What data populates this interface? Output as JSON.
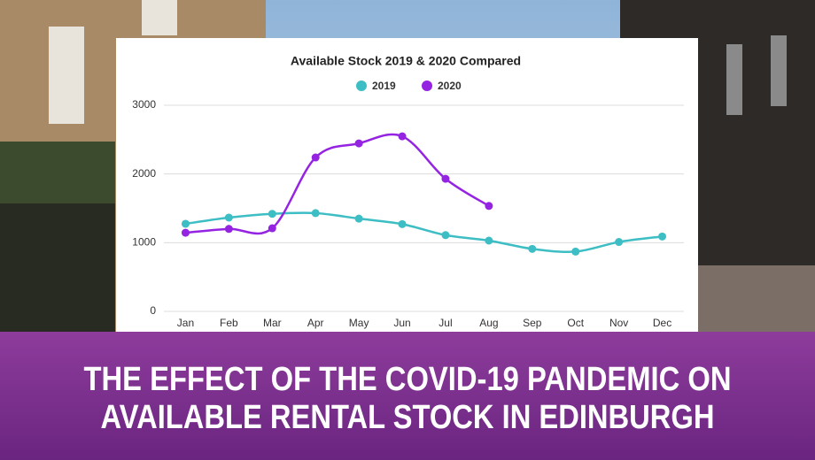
{
  "chart_data": {
    "type": "line",
    "title": "Available Stock 2019 & 2020 Compared",
    "categories": [
      "Jan",
      "Feb",
      "Mar",
      "Apr",
      "May",
      "Jun",
      "Jul",
      "Aug",
      "Sep",
      "Oct",
      "Nov",
      "Dec"
    ],
    "series": [
      {
        "name": "2019",
        "color": "#3dbdc4",
        "values": [
          1275,
          1365,
          1420,
          1430,
          1350,
          1270,
          1110,
          1030,
          910,
          870,
          1010,
          1090
        ]
      },
      {
        "name": "2020",
        "color": "#9424e2",
        "values": [
          1145,
          1200,
          1210,
          2240,
          2445,
          2548,
          1930,
          1535,
          null,
          null,
          null,
          null
        ]
      }
    ],
    "ylim": [
      0,
      3000
    ],
    "yticks": [
      0,
      1000,
      2000,
      3000
    ],
    "grid": true,
    "legend": "top",
    "smooth": true
  },
  "banner": {
    "lines": [
      "THE EFFECT OF THE COVID-19 PANDEMIC ON",
      "AVAILABLE RENTAL STOCK IN EDINBURGH"
    ]
  }
}
